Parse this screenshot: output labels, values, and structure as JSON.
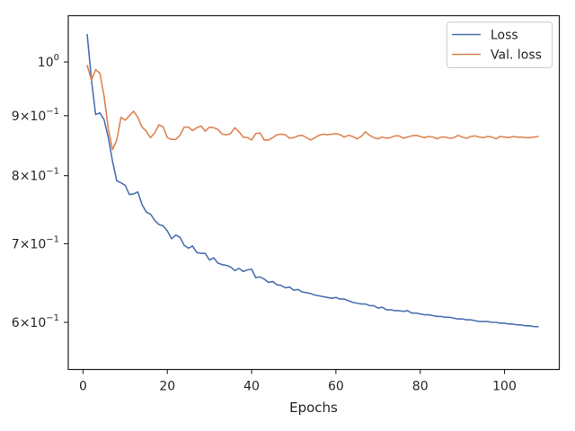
{
  "chart_data": {
    "type": "line",
    "title": "",
    "xlabel": "Epochs",
    "ylabel": "",
    "xlim": [
      -3.5,
      113
    ],
    "ylim": [
      0.547,
      1.095
    ],
    "yscale": "log",
    "grid": false,
    "legend_position": "top-right",
    "xticks": [
      0,
      20,
      40,
      60,
      80,
      100
    ],
    "xtick_labels": [
      "0",
      "20",
      "40",
      "60",
      "80",
      "100"
    ],
    "yticks": [
      0.6,
      0.7,
      0.8,
      0.9,
      1.0
    ],
    "ytick_labels": [
      {
        "base": "6",
        "times": "×",
        "exp_base": "10",
        "exp": "−1"
      },
      {
        "base": "7",
        "times": "×",
        "exp_base": "10",
        "exp": "−1"
      },
      {
        "base": "8",
        "times": "×",
        "exp_base": "10",
        "exp": "−1"
      },
      {
        "base": "9",
        "times": "×",
        "exp_base": "10",
        "exp": "−1"
      },
      {
        "base": "",
        "times": "",
        "exp_base": "10",
        "exp": "0"
      }
    ],
    "series": [
      {
        "name": "Loss",
        "color": "#4c72b0",
        "x_start": 1,
        "values": [
          1.055,
          0.965,
          0.902,
          0.905,
          0.893,
          0.862,
          0.823,
          0.792,
          0.789,
          0.785,
          0.771,
          0.772,
          0.775,
          0.756,
          0.745,
          0.742,
          0.733,
          0.727,
          0.725,
          0.718,
          0.707,
          0.712,
          0.709,
          0.698,
          0.694,
          0.697,
          0.688,
          0.687,
          0.687,
          0.678,
          0.681,
          0.674,
          0.672,
          0.671,
          0.669,
          0.664,
          0.667,
          0.663,
          0.665,
          0.666,
          0.655,
          0.656,
          0.653,
          0.649,
          0.65,
          0.646,
          0.645,
          0.642,
          0.643,
          0.639,
          0.64,
          0.637,
          0.636,
          0.635,
          0.633,
          0.632,
          0.631,
          0.63,
          0.629,
          0.63,
          0.628,
          0.628,
          0.626,
          0.624,
          0.623,
          0.622,
          0.622,
          0.62,
          0.62,
          0.617,
          0.618,
          0.615,
          0.615,
          0.614,
          0.614,
          0.613,
          0.614,
          0.611,
          0.611,
          0.61,
          0.609,
          0.609,
          0.608,
          0.607,
          0.607,
          0.606,
          0.606,
          0.605,
          0.604,
          0.604,
          0.603,
          0.603,
          0.602,
          0.601,
          0.601,
          0.601,
          0.6,
          0.6,
          0.599,
          0.599,
          0.598,
          0.598,
          0.597,
          0.597,
          0.596,
          0.596,
          0.595,
          0.595
        ]
      },
      {
        "name": "Val. loss",
        "color": "#dd8452",
        "x_start": 1,
        "values": [
          0.993,
          0.965,
          0.985,
          0.978,
          0.935,
          0.877,
          0.842,
          0.858,
          0.897,
          0.892,
          0.9,
          0.908,
          0.897,
          0.88,
          0.873,
          0.862,
          0.87,
          0.884,
          0.881,
          0.862,
          0.859,
          0.859,
          0.866,
          0.88,
          0.88,
          0.874,
          0.879,
          0.882,
          0.873,
          0.88,
          0.879,
          0.876,
          0.868,
          0.867,
          0.869,
          0.879,
          0.872,
          0.863,
          0.862,
          0.858,
          0.869,
          0.87,
          0.858,
          0.858,
          0.862,
          0.867,
          0.868,
          0.867,
          0.861,
          0.862,
          0.865,
          0.866,
          0.862,
          0.858,
          0.862,
          0.866,
          0.868,
          0.867,
          0.868,
          0.869,
          0.867,
          0.863,
          0.866,
          0.864,
          0.86,
          0.864,
          0.872,
          0.866,
          0.862,
          0.86,
          0.863,
          0.861,
          0.862,
          0.865,
          0.865,
          0.861,
          0.863,
          0.865,
          0.866,
          0.864,
          0.862,
          0.864,
          0.863,
          0.86,
          0.863,
          0.863,
          0.861,
          0.862,
          0.866,
          0.863,
          0.861,
          0.864,
          0.865,
          0.863,
          0.862,
          0.864,
          0.863,
          0.86,
          0.864,
          0.863,
          0.862,
          0.864,
          0.863,
          0.863,
          0.862,
          0.862,
          0.863,
          0.864
        ]
      }
    ]
  }
}
